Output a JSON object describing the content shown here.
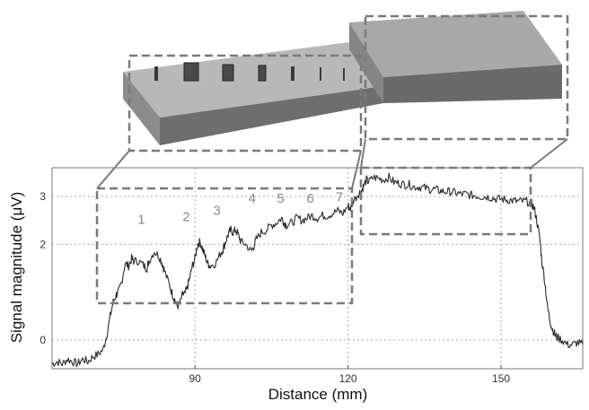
{
  "chart_data": {
    "type": "line",
    "xlabel": "Distance (mm)",
    "ylabel": "Signal magnitude (μV)",
    "xlim": [
      62,
      166
    ],
    "ylim": [
      -0.6,
      3.6
    ],
    "x_ticks": [
      90,
      120,
      150
    ],
    "y_ticks": [
      0,
      2,
      3
    ],
    "grid": true,
    "series": [
      {
        "points": [
          [
            62,
            -0.5
          ],
          [
            63,
            -0.45
          ],
          [
            64,
            -0.5
          ],
          [
            65,
            -0.4
          ],
          [
            66,
            -0.45
          ],
          [
            67,
            -0.5
          ],
          [
            68,
            -0.4
          ],
          [
            69,
            -0.45
          ],
          [
            70,
            -0.35
          ],
          [
            71,
            -0.3
          ],
          [
            72,
            -0.2
          ],
          [
            72.7,
            0.1
          ],
          [
            73.4,
            0.5
          ],
          [
            74,
            0.8
          ],
          [
            74.6,
            0.95
          ],
          [
            75,
            1.0
          ],
          [
            75.6,
            1.2
          ],
          [
            76.3,
            1.6
          ],
          [
            77,
            1.55
          ],
          [
            77.6,
            1.7
          ],
          [
            78,
            1.65
          ],
          [
            79,
            1.65
          ],
          [
            80,
            1.55
          ],
          [
            80.6,
            1.5
          ],
          [
            81,
            1.65
          ],
          [
            82,
            1.85
          ],
          [
            83,
            1.75
          ],
          [
            83.6,
            1.6
          ],
          [
            84,
            1.45
          ],
          [
            85,
            1.15
          ],
          [
            85.6,
            0.95
          ],
          [
            86,
            0.85
          ],
          [
            86.5,
            0.7
          ],
          [
            87,
            0.75
          ],
          [
            87.6,
            0.95
          ],
          [
            88,
            0.95
          ],
          [
            88.5,
            1.1
          ],
          [
            89,
            1.3
          ],
          [
            89.5,
            1.55
          ],
          [
            90,
            1.7
          ],
          [
            90.5,
            2.0
          ],
          [
            91,
            2.05
          ],
          [
            91.5,
            1.9
          ],
          [
            92,
            1.75
          ],
          [
            92.5,
            1.6
          ],
          [
            93,
            1.55
          ],
          [
            94,
            1.6
          ],
          [
            95,
            1.8
          ],
          [
            95.5,
            1.9
          ],
          [
            96,
            2.05
          ],
          [
            96.5,
            2.2
          ],
          [
            97,
            2.3
          ],
          [
            97.5,
            2.25
          ],
          [
            98,
            2.3
          ],
          [
            98.5,
            2.2
          ],
          [
            99,
            2.05
          ],
          [
            100,
            2.0
          ],
          [
            101,
            1.85
          ],
          [
            101.5,
            1.95
          ],
          [
            102,
            2.1
          ],
          [
            103,
            2.25
          ],
          [
            104,
            2.3
          ],
          [
            105,
            2.4
          ],
          [
            106,
            2.45
          ],
          [
            107,
            2.55
          ],
          [
            107.5,
            2.45
          ],
          [
            108,
            2.4
          ],
          [
            109,
            2.45
          ],
          [
            110,
            2.55
          ],
          [
            111,
            2.5
          ],
          [
            112,
            2.55
          ],
          [
            113,
            2.6
          ],
          [
            114,
            2.55
          ],
          [
            115,
            2.6
          ],
          [
            116,
            2.6
          ],
          [
            117,
            2.65
          ],
          [
            118,
            2.7
          ],
          [
            119,
            2.65
          ],
          [
            120,
            2.8
          ],
          [
            120.5,
            2.75
          ],
          [
            121,
            2.9
          ],
          [
            122,
            3.05
          ],
          [
            122.5,
            3.1
          ],
          [
            123,
            3.2
          ],
          [
            123.6,
            3.35
          ],
          [
            124,
            3.3
          ],
          [
            125,
            3.4
          ],
          [
            126,
            3.38
          ],
          [
            127,
            3.35
          ],
          [
            128,
            3.4
          ],
          [
            129,
            3.3
          ],
          [
            130,
            3.28
          ],
          [
            131,
            3.25
          ],
          [
            132,
            3.25
          ],
          [
            133,
            3.2
          ],
          [
            134,
            3.2
          ],
          [
            135,
            3.18
          ],
          [
            136,
            3.15
          ],
          [
            137,
            3.15
          ],
          [
            138,
            3.12
          ],
          [
            139,
            3.1
          ],
          [
            140,
            3.1
          ],
          [
            141,
            3.08
          ],
          [
            142,
            3.05
          ],
          [
            143,
            3.05
          ],
          [
            144,
            3.03
          ],
          [
            145,
            3.02
          ],
          [
            146,
            3.0
          ],
          [
            147,
            3.0
          ],
          [
            148,
            2.98
          ],
          [
            149,
            2.95
          ],
          [
            150,
            2.95
          ],
          [
            151,
            2.93
          ],
          [
            152,
            2.92
          ],
          [
            153,
            2.9
          ],
          [
            154,
            2.9
          ],
          [
            155,
            2.9
          ],
          [
            156,
            2.85
          ],
          [
            156.5,
            2.75
          ],
          [
            157,
            2.5
          ],
          [
            157.6,
            2.1
          ],
          [
            158,
            1.65
          ],
          [
            158.6,
            1.2
          ],
          [
            159,
            0.75
          ],
          [
            159.6,
            0.4
          ],
          [
            160,
            0.25
          ],
          [
            160.6,
            0.1
          ],
          [
            161,
            0.05
          ],
          [
            162,
            0.0
          ],
          [
            163,
            -0.1
          ],
          [
            164,
            -0.1
          ],
          [
            165,
            -0.05
          ],
          [
            166,
            -0.1
          ]
        ]
      }
    ],
    "annotations": [
      {
        "text": "1",
        "x": 79.5,
        "y": 2.43
      },
      {
        "text": "2",
        "x": 88.3,
        "y": 2.48
      },
      {
        "text": "3",
        "x": 94.3,
        "y": 2.62
      },
      {
        "text": "4",
        "x": 101.2,
        "y": 2.87
      },
      {
        "text": "5",
        "x": 106.8,
        "y": 2.87
      },
      {
        "text": "6",
        "x": 112.6,
        "y": 2.87
      },
      {
        "text": "7",
        "x": 118.3,
        "y": 2.9
      }
    ],
    "color": "#2a2a2a"
  }
}
